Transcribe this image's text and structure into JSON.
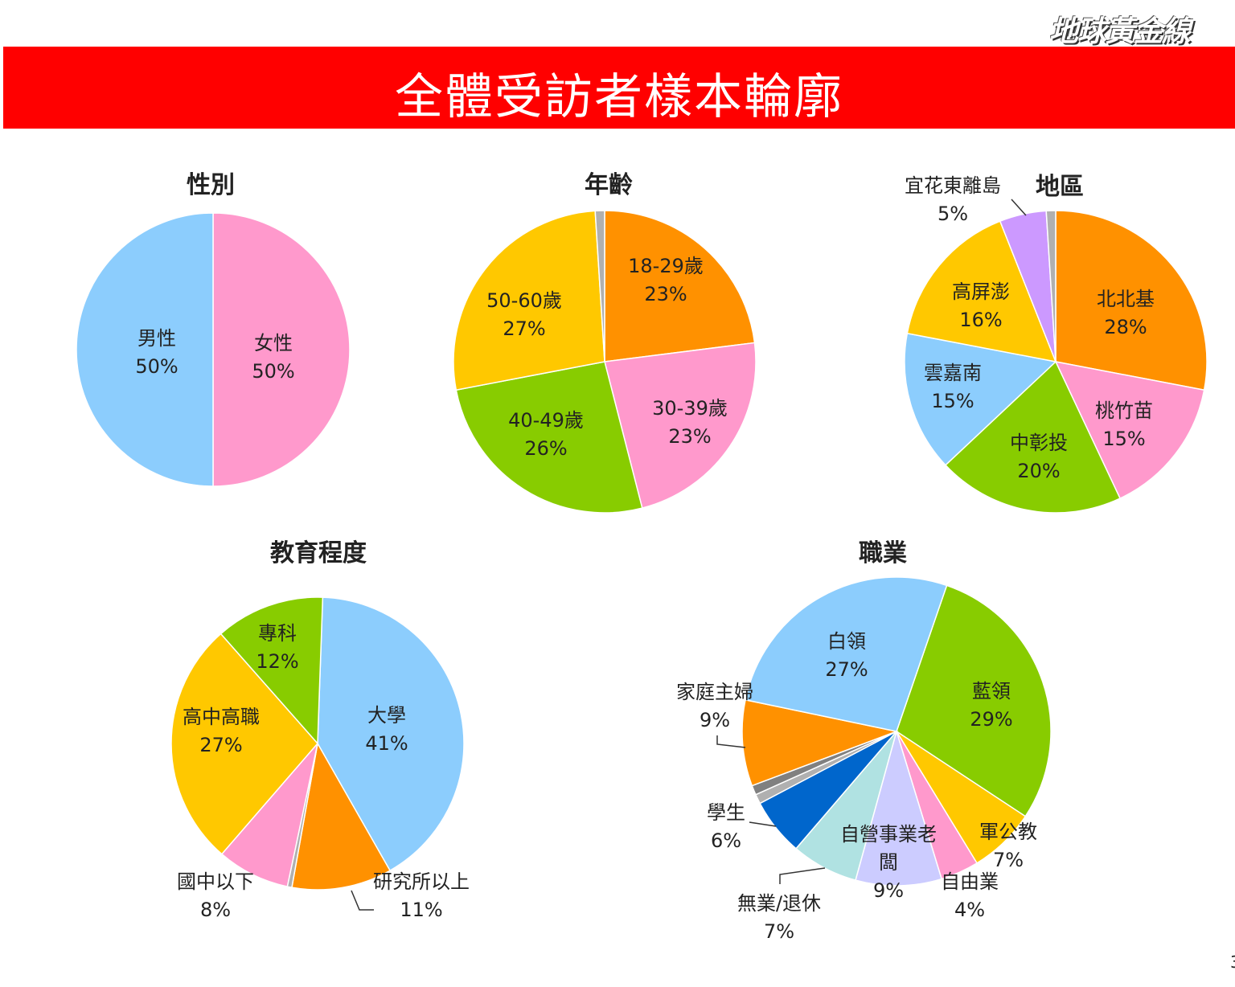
{
  "header": {
    "title": "全體受訪者樣本輪廓",
    "logo": "地球黃金線",
    "page_number": "3"
  },
  "colors": {
    "banner": "#ff0000",
    "light_blue": "#8ccdfd",
    "pink": "#ff99cc",
    "orange": "#ff9100",
    "yellow": "#ffc800",
    "green": "#88cc00",
    "purple": "#cc99ff",
    "dark_blue": "#0066cc",
    "teal": "#b0e2e2",
    "lavender": "#ccccff",
    "gray": "#b0b0b0",
    "dark_gray": "#808080"
  },
  "chart_data": [
    {
      "type": "pie",
      "title": "性別",
      "start_angle": 0,
      "slices": [
        {
          "label": "女性",
          "value": 50,
          "text": "50%",
          "color": "#ff99cc"
        },
        {
          "label": "男性",
          "value": 50,
          "text": "50%",
          "color": "#8ccdfd"
        }
      ]
    },
    {
      "type": "pie",
      "title": "年齡",
      "start_angle": 0,
      "slices": [
        {
          "label": "18-29歲",
          "value": 23,
          "text": "23%",
          "color": "#ff9100"
        },
        {
          "label": "30-39歲",
          "value": 23,
          "text": "23%",
          "color": "#ff99cc"
        },
        {
          "label": "40-49歲",
          "value": 26,
          "text": "26%",
          "color": "#88cc00"
        },
        {
          "label": "50-60歲",
          "value": 27,
          "text": "27%",
          "color": "#ffc800"
        },
        {
          "label": "",
          "value": 1,
          "text": "",
          "color": "#b0b0b0"
        }
      ]
    },
    {
      "type": "pie",
      "title": "地區",
      "start_angle": 0,
      "slices": [
        {
          "label": "北北基",
          "value": 28,
          "text": "28%",
          "color": "#ff9100"
        },
        {
          "label": "桃竹苗",
          "value": 15,
          "text": "15%",
          "color": "#ff99cc"
        },
        {
          "label": "中彰投",
          "value": 20,
          "text": "20%",
          "color": "#88cc00"
        },
        {
          "label": "雲嘉南",
          "value": 15,
          "text": "15%",
          "color": "#8ccdfd"
        },
        {
          "label": "高屏澎",
          "value": 16,
          "text": "16%",
          "color": "#ffc800"
        },
        {
          "label": "宜花東離島",
          "value": 5,
          "text": "5%",
          "color": "#cc99ff"
        },
        {
          "label": "",
          "value": 1,
          "text": "",
          "color": "#b0b0b0"
        }
      ]
    },
    {
      "type": "pie",
      "title": "教育程度",
      "start_angle": 2,
      "slices": [
        {
          "label": "大學",
          "value": 41,
          "text": "41%",
          "color": "#8ccdfd"
        },
        {
          "label": "研究所以上",
          "value": 11,
          "text": "11%",
          "color": "#ff9100"
        },
        {
          "label": "",
          "value": 0.5,
          "text": "",
          "color": "#b0b0b0"
        },
        {
          "label": "國中以下",
          "value": 8,
          "text": "8%",
          "color": "#ff99cc"
        },
        {
          "label": "高中高職",
          "value": 27,
          "text": "27%",
          "color": "#ffc800"
        },
        {
          "label": "專科",
          "value": 12,
          "text": "12%",
          "color": "#88cc00"
        }
      ]
    },
    {
      "type": "pie",
      "title": "職業",
      "start_angle": 19,
      "slices": [
        {
          "label": "藍領",
          "value": 29,
          "text": "29%",
          "color": "#88cc00"
        },
        {
          "label": "軍公教",
          "value": 7,
          "text": "7%",
          "color": "#ffc800"
        },
        {
          "label": "自由業",
          "value": 4,
          "text": "4%",
          "color": "#ff99cc"
        },
        {
          "label": "自營事業老闆",
          "value": 9,
          "text": "9%",
          "color": "#ccccff"
        },
        {
          "label": "無業/退休",
          "value": 7,
          "text": "7%",
          "color": "#b0e2e2"
        },
        {
          "label": "學生",
          "value": 6,
          "text": "6%",
          "color": "#0066cc"
        },
        {
          "label": "",
          "value": 1,
          "text": "",
          "color": "#b0b0b0"
        },
        {
          "label": "",
          "value": 1,
          "text": "",
          "color": "#808080"
        },
        {
          "label": "家庭主婦",
          "value": 9,
          "text": "9%",
          "color": "#ff9100"
        },
        {
          "label": "白領",
          "value": 27,
          "text": "27%",
          "color": "#8ccdfd"
        }
      ]
    }
  ]
}
